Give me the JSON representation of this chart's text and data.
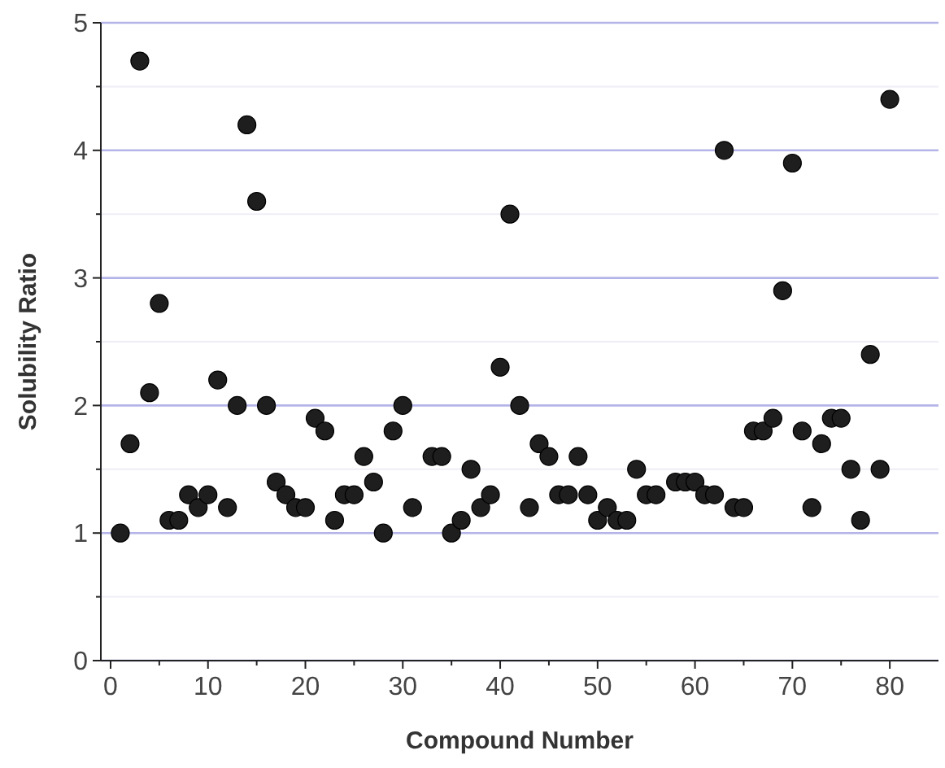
{
  "chart_data": {
    "type": "scatter",
    "xlabel": "Compound Number",
    "ylabel": "Solubility Ratio",
    "x": [
      1,
      2,
      3,
      4,
      5,
      6,
      7,
      8,
      9,
      10,
      11,
      12,
      13,
      14,
      15,
      16,
      17,
      18,
      19,
      20,
      21,
      22,
      23,
      24,
      25,
      26,
      27,
      28,
      29,
      30,
      31,
      33,
      34,
      35,
      36,
      37,
      38,
      39,
      40,
      41,
      42,
      43,
      44,
      45,
      46,
      47,
      48,
      49,
      50,
      51,
      52,
      53,
      54,
      55,
      56,
      58,
      59,
      60,
      61,
      62,
      63,
      64,
      65,
      66,
      67,
      68,
      69,
      70,
      71,
      72,
      73,
      74,
      75,
      76,
      77,
      78,
      79,
      80
    ],
    "series": [
      {
        "color": "#1e1e1e",
        "values": [
          1.0,
          1.7,
          4.7,
          2.1,
          2.8,
          1.1,
          1.1,
          1.3,
          1.2,
          1.3,
          2.2,
          1.2,
          2.0,
          4.2,
          3.6,
          2.0,
          1.4,
          1.3,
          1.2,
          1.2,
          1.9,
          1.8,
          1.1,
          1.3,
          1.3,
          1.6,
          1.4,
          1.0,
          1.8,
          2.0,
          1.2,
          1.6,
          1.6,
          1.0,
          1.1,
          1.5,
          1.2,
          1.3,
          2.3,
          3.5,
          2.0,
          1.2,
          1.7,
          1.6,
          1.3,
          1.3,
          1.6,
          1.3,
          1.1,
          1.2,
          1.1,
          1.1,
          1.5,
          1.3,
          1.3,
          1.4,
          1.4,
          1.4,
          1.3,
          1.3,
          4.0,
          1.2,
          1.2,
          1.8,
          1.8,
          1.9,
          2.9,
          3.9,
          1.8,
          1.2,
          1.7,
          1.9,
          1.9,
          1.5,
          1.1,
          2.4,
          1.5,
          4.4
        ]
      }
    ],
    "xlim": [
      -1,
      85
    ],
    "ylim": [
      0,
      5
    ],
    "xticks": [
      0,
      {
        "value": 5,
        "label": null
      },
      10,
      {
        "value": 15,
        "label": null
      },
      20,
      {
        "value": 25,
        "label": null
      },
      30,
      {
        "value": 35,
        "label": null
      },
      40,
      {
        "value": 45,
        "label": null
      },
      50,
      {
        "value": 55,
        "label": null
      },
      60,
      {
        "value": 65,
        "label": null
      },
      70,
      {
        "value": 75,
        "label": null
      },
      80
    ],
    "yticks": [
      0,
      {
        "value": 0.5,
        "label": null
      },
      1,
      {
        "value": 1.5,
        "label": null
      },
      2,
      {
        "value": 2.5,
        "label": null
      },
      3,
      {
        "value": 3.5,
        "label": null
      },
      4,
      {
        "value": 4.5,
        "label": null
      },
      5
    ],
    "grid": "y",
    "marker": "circle"
  }
}
